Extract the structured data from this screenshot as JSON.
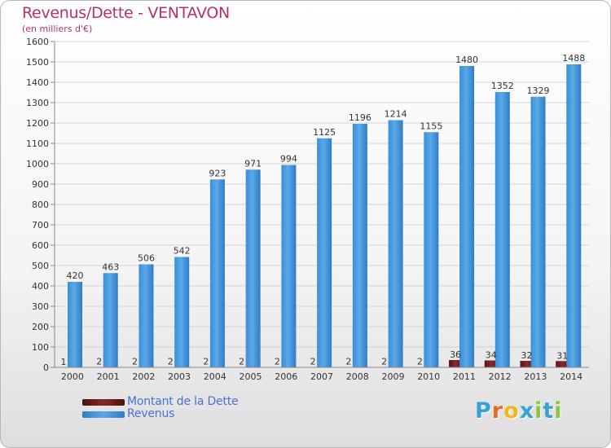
{
  "title": "Revenus/Dette - VENTAVON",
  "subtitle": "(en milliers d'€)",
  "legend": {
    "dette_label": "Montant de la Dette",
    "revenus_label": "Revenus"
  },
  "logo": {
    "letters": [
      "P",
      "r",
      "o",
      "x",
      "i",
      "t",
      "i"
    ],
    "colors": [
      "#3aa0d8",
      "#e86a2a",
      "#f0b820",
      "#3aa0d8",
      "#8cc63f",
      "#3aa0d8",
      "#8cc63f"
    ]
  },
  "colors": {
    "revenus": "#3d8fd6",
    "dette": "#6b1a1a",
    "title": "#b5316a",
    "legend_text": "#4a6fd8"
  },
  "chart_data": {
    "type": "bar",
    "title": "Revenus/Dette - VENTAVON",
    "subtitle": "(en milliers d'€)",
    "categories": [
      "2000",
      "2001",
      "2002",
      "2003",
      "2004",
      "2005",
      "2006",
      "2007",
      "2008",
      "2009",
      "2010",
      "2011",
      "2012",
      "2013",
      "2014"
    ],
    "series": [
      {
        "name": "Montant de la Dette",
        "values": [
          1,
          2,
          2,
          2,
          2,
          2,
          2,
          2,
          2,
          2,
          2,
          36,
          34,
          32,
          31
        ]
      },
      {
        "name": "Revenus",
        "values": [
          420,
          463,
          506,
          542,
          923,
          971,
          994,
          1125,
          1196,
          1214,
          1155,
          1480,
          1352,
          1329,
          1488
        ]
      }
    ],
    "ylim": [
      0,
      1600
    ],
    "yticks": [
      0,
      100,
      200,
      300,
      400,
      500,
      600,
      700,
      800,
      900,
      1000,
      1100,
      1200,
      1300,
      1400,
      1500,
      1600
    ],
    "grid": true,
    "legend": "bottom-left"
  }
}
